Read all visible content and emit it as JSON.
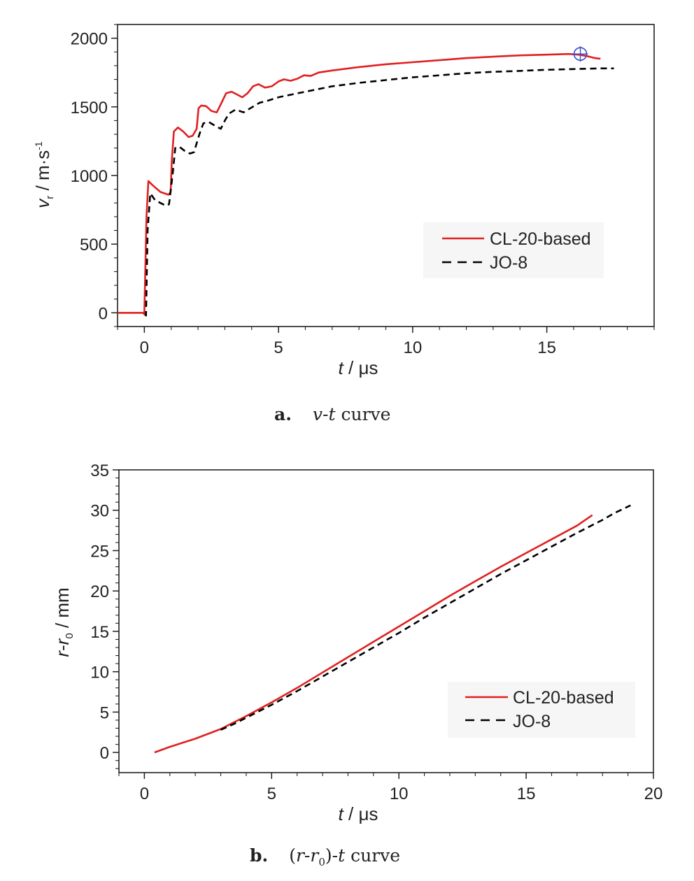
{
  "chart_data": [
    {
      "type": "line",
      "caption": {
        "letter": "a.",
        "v": "v",
        "dash": "-",
        "t": "t",
        "rest": " curve"
      },
      "xlabel": {
        "italic": "t",
        "rest": " / μs"
      },
      "ylabel": {
        "italic": "v",
        "sub": "r",
        "rest": " / m·s",
        "sup": "-1"
      },
      "xlim": [
        -1,
        19
      ],
      "ylim": [
        -100,
        2100
      ],
      "xticks": [
        "0",
        "5",
        "10",
        "15"
      ],
      "yticks": [
        "0",
        "500",
        "1000",
        "1500",
        "2000"
      ],
      "legend_position": "lower-right",
      "grid": false,
      "series": [
        {
          "name": "CL-20-based",
          "color": "#e02020",
          "style": "solid",
          "points": [
            [
              -1,
              0
            ],
            [
              -0.05,
              0
            ],
            [
              0,
              -10
            ],
            [
              0.08,
              700
            ],
            [
              0.15,
              960
            ],
            [
              0.3,
              930
            ],
            [
              0.6,
              880
            ],
            [
              0.9,
              860
            ],
            [
              0.98,
              880
            ],
            [
              1.02,
              1100
            ],
            [
              1.1,
              1320
            ],
            [
              1.25,
              1350
            ],
            [
              1.45,
              1320
            ],
            [
              1.65,
              1280
            ],
            [
              1.8,
              1290
            ],
            [
              1.95,
              1340
            ],
            [
              2.02,
              1490
            ],
            [
              2.12,
              1510
            ],
            [
              2.3,
              1505
            ],
            [
              2.5,
              1470
            ],
            [
              2.7,
              1460
            ],
            [
              2.9,
              1540
            ],
            [
              3.05,
              1600
            ],
            [
              3.25,
              1610
            ],
            [
              3.45,
              1590
            ],
            [
              3.65,
              1570
            ],
            [
              3.85,
              1600
            ],
            [
              4.05,
              1650
            ],
            [
              4.25,
              1665
            ],
            [
              4.5,
              1640
            ],
            [
              4.75,
              1650
            ],
            [
              5.0,
              1685
            ],
            [
              5.2,
              1700
            ],
            [
              5.45,
              1690
            ],
            [
              5.7,
              1705
            ],
            [
              5.95,
              1730
            ],
            [
              6.2,
              1725
            ],
            [
              6.5,
              1750
            ],
            [
              7.0,
              1765
            ],
            [
              8.0,
              1790
            ],
            [
              9.0,
              1810
            ],
            [
              10.0,
              1825
            ],
            [
              11.0,
              1840
            ],
            [
              12.0,
              1855
            ],
            [
              13.0,
              1865
            ],
            [
              14.0,
              1875
            ],
            [
              15.0,
              1880
            ],
            [
              15.8,
              1885
            ],
            [
              16.2,
              1880
            ],
            [
              16.5,
              1870
            ],
            [
              16.8,
              1855
            ],
            [
              17.0,
              1850
            ]
          ]
        },
        {
          "name": "JO-8",
          "color": "#000000",
          "style": "dashed",
          "points": [
            [
              0.02,
              -10
            ],
            [
              0.06,
              -20
            ],
            [
              0.12,
              600
            ],
            [
              0.22,
              870
            ],
            [
              0.4,
              820
            ],
            [
              0.6,
              800
            ],
            [
              0.8,
              780
            ],
            [
              0.92,
              790
            ],
            [
              1.05,
              1000
            ],
            [
              1.15,
              1200
            ],
            [
              1.3,
              1210
            ],
            [
              1.5,
              1180
            ],
            [
              1.7,
              1160
            ],
            [
              1.85,
              1170
            ],
            [
              2.05,
              1300
            ],
            [
              2.2,
              1380
            ],
            [
              2.4,
              1390
            ],
            [
              2.65,
              1360
            ],
            [
              2.85,
              1340
            ],
            [
              3.0,
              1400
            ],
            [
              3.15,
              1450
            ],
            [
              3.4,
              1480
            ],
            [
              3.7,
              1460
            ],
            [
              3.95,
              1490
            ],
            [
              4.3,
              1530
            ],
            [
              4.6,
              1545
            ],
            [
              5.0,
              1570
            ],
            [
              5.5,
              1590
            ],
            [
              6.0,
              1610
            ],
            [
              6.5,
              1630
            ],
            [
              7.0,
              1650
            ],
            [
              8.0,
              1675
            ],
            [
              9.0,
              1695
            ],
            [
              10.0,
              1715
            ],
            [
              11.0,
              1730
            ],
            [
              12.0,
              1745
            ],
            [
              13.0,
              1755
            ],
            [
              14.0,
              1762
            ],
            [
              15.0,
              1770
            ],
            [
              16.0,
              1775
            ],
            [
              17.0,
              1780
            ],
            [
              17.5,
              1780
            ]
          ]
        }
      ],
      "marker": {
        "x": 16.25,
        "y": 1885
      }
    },
    {
      "type": "line",
      "caption": {
        "letter": "b.",
        "open": "(",
        "r": "r",
        "dash": "-",
        "r0": "r",
        "sub0": "0",
        "close": ")",
        "dash2": "-",
        "t": "t",
        "rest": " curve"
      },
      "xlabel": {
        "italic": "t",
        "rest": " / μs"
      },
      "ylabel": {
        "r": "r",
        "dash": "-",
        "r0": "r",
        "sub": "0",
        "rest": " / mm"
      },
      "xlim": [
        -1,
        20
      ],
      "ylim": [
        -2.5,
        35
      ],
      "xticks": [
        "0",
        "5",
        "10",
        "15",
        "20"
      ],
      "yticks": [
        "0",
        "5",
        "10",
        "15",
        "20",
        "25",
        "30",
        "35"
      ],
      "legend_position": "lower-right",
      "grid": false,
      "series": [
        {
          "name": "CL-20-based",
          "color": "#e02020",
          "style": "solid",
          "points": [
            [
              0.4,
              0
            ],
            [
              1,
              0.7
            ],
            [
              2,
              1.7
            ],
            [
              3,
              2.9
            ],
            [
              4,
              4.5
            ],
            [
              5,
              6.2
            ],
            [
              6,
              8.0
            ],
            [
              7,
              9.9
            ],
            [
              8,
              11.8
            ],
            [
              9,
              13.7
            ],
            [
              10,
              15.6
            ],
            [
              11,
              17.5
            ],
            [
              12,
              19.4
            ],
            [
              13,
              21.2
            ],
            [
              14,
              23.0
            ],
            [
              15,
              24.7
            ],
            [
              16,
              26.4
            ],
            [
              17,
              28.1
            ],
            [
              17.6,
              29.4
            ]
          ]
        },
        {
          "name": "JO-8",
          "color": "#000000",
          "style": "dashed",
          "points": [
            [
              3,
              2.8
            ],
            [
              3.5,
              3.5
            ],
            [
              4,
              4.3
            ],
            [
              5,
              5.9
            ],
            [
              6,
              7.6
            ],
            [
              7,
              9.4
            ],
            [
              8,
              11.2
            ],
            [
              9,
              13.0
            ],
            [
              10,
              14.8
            ],
            [
              11,
              16.7
            ],
            [
              12,
              18.5
            ],
            [
              13,
              20.3
            ],
            [
              14,
              22.1
            ],
            [
              15,
              23.8
            ],
            [
              16,
              25.5
            ],
            [
              17,
              27.2
            ],
            [
              18,
              28.8
            ],
            [
              18.5,
              29.7
            ],
            [
              19.1,
              30.6
            ]
          ]
        }
      ]
    }
  ]
}
